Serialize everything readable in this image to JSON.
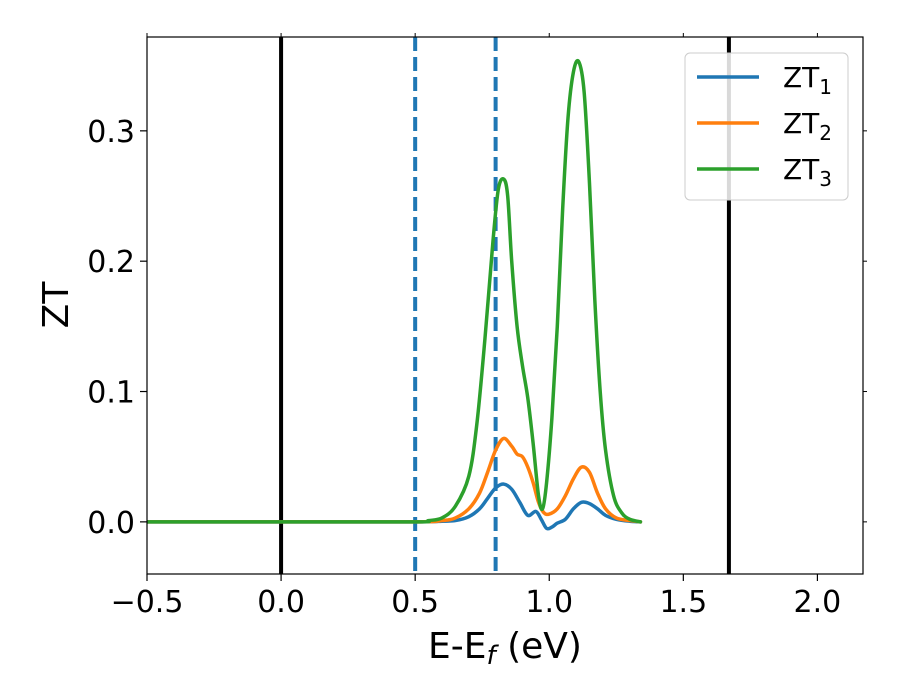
{
  "chart_data": {
    "type": "line",
    "xlabel_main": "E-E",
    "xlabel_sub": "f",
    "xlabel_unit": " (eV)",
    "ylabel": "ZT",
    "xlim": [
      -0.5,
      2.17
    ],
    "ylim": [
      -0.04,
      0.372
    ],
    "xticks": [
      -0.5,
      0.0,
      0.5,
      1.0,
      1.5,
      2.0
    ],
    "xtick_labels": [
      "−0.5",
      "0.0",
      "0.5",
      "1.0",
      "1.5",
      "2.0"
    ],
    "yticks": [
      0.0,
      0.1,
      0.2,
      0.3
    ],
    "ytick_labels": [
      "0.0",
      "0.1",
      "0.2",
      "0.3"
    ],
    "grid": false,
    "legend_position": "top-right",
    "vlines": [
      {
        "x": 0.0,
        "style": "solid",
        "color": "#000000"
      },
      {
        "x": 1.67,
        "style": "solid",
        "color": "#000000"
      },
      {
        "x": 0.5,
        "style": "dashed",
        "color": "#1f77b4"
      },
      {
        "x": 0.8,
        "style": "dashed",
        "color": "#1f77b4"
      }
    ],
    "series": [
      {
        "name": "ZT",
        "subscript": "1",
        "color": "#1f77b4",
        "x": [
          -0.5,
          0.0,
          0.5,
          0.6,
          0.65,
          0.7,
          0.74,
          0.77,
          0.8,
          0.83,
          0.86,
          0.89,
          0.92,
          0.95,
          0.97,
          0.99,
          1.01,
          1.03,
          1.06,
          1.09,
          1.12,
          1.15,
          1.18,
          1.21,
          1.25,
          1.3,
          1.34
        ],
        "y": [
          0.0,
          0.0,
          0.0,
          0.0005,
          0.001,
          0.004,
          0.01,
          0.018,
          0.026,
          0.029,
          0.025,
          0.015,
          0.005,
          0.008,
          0.002,
          -0.005,
          -0.004,
          -0.001,
          0.002,
          0.01,
          0.015,
          0.014,
          0.01,
          0.005,
          0.002,
          0.0005,
          0.0
        ]
      },
      {
        "name": "ZT",
        "subscript": "2",
        "color": "#ff7f0e",
        "x": [
          -0.5,
          0.0,
          0.5,
          0.6,
          0.65,
          0.7,
          0.74,
          0.77,
          0.8,
          0.83,
          0.86,
          0.88,
          0.9,
          0.92,
          0.94,
          0.96,
          0.98,
          1.0,
          1.03,
          1.06,
          1.09,
          1.12,
          1.15,
          1.18,
          1.21,
          1.25,
          1.3,
          1.34
        ],
        "y": [
          0.0,
          0.0,
          0.0,
          0.001,
          0.003,
          0.01,
          0.022,
          0.038,
          0.055,
          0.064,
          0.058,
          0.052,
          0.05,
          0.042,
          0.03,
          0.015,
          0.007,
          0.006,
          0.01,
          0.02,
          0.033,
          0.042,
          0.038,
          0.022,
          0.01,
          0.003,
          0.001,
          0.0
        ]
      },
      {
        "name": "ZT",
        "subscript": "3",
        "color": "#2ca02c",
        "x": [
          -0.5,
          0.0,
          0.5,
          0.55,
          0.6,
          0.65,
          0.7,
          0.73,
          0.76,
          0.79,
          0.81,
          0.83,
          0.845,
          0.86,
          0.88,
          0.9,
          0.92,
          0.94,
          0.96,
          0.975,
          0.99,
          1.01,
          1.03,
          1.05,
          1.07,
          1.09,
          1.11,
          1.13,
          1.15,
          1.17,
          1.19,
          1.21,
          1.24,
          1.27,
          1.3,
          1.34
        ],
        "y": [
          0.0,
          0.0,
          0.0,
          0.001,
          0.003,
          0.012,
          0.035,
          0.075,
          0.14,
          0.215,
          0.255,
          0.263,
          0.25,
          0.2,
          0.15,
          0.12,
          0.095,
          0.06,
          0.02,
          0.01,
          0.03,
          0.08,
          0.15,
          0.24,
          0.31,
          0.345,
          0.353,
          0.33,
          0.26,
          0.17,
          0.1,
          0.055,
          0.02,
          0.007,
          0.002,
          0.0
        ]
      }
    ]
  }
}
